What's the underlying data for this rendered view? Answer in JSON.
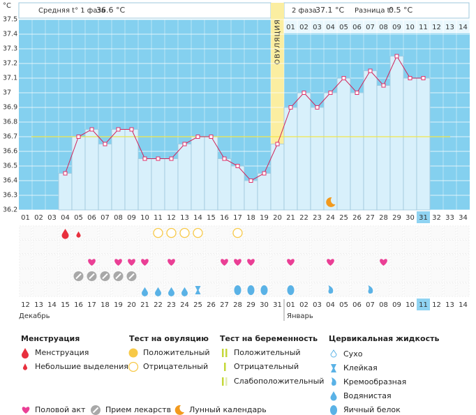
{
  "header": {
    "unit": "°C",
    "phase1_label": "Средняя t° 1 фаза",
    "phase1_value": "36.6 °C",
    "phase2_label": "2 фаза",
    "phase2_value": "37.1 °C",
    "diff_label": "Разница t°",
    "diff_value": "0.5 °C"
  },
  "chart_data": {
    "type": "line",
    "categories": [
      "01",
      "02",
      "03",
      "04",
      "05",
      "06",
      "07",
      "08",
      "09",
      "10",
      "11",
      "12",
      "13",
      "14",
      "15",
      "16",
      "17",
      "18",
      "19",
      "20",
      "21",
      "22",
      "23",
      "24",
      "25",
      "26",
      "27",
      "28",
      "29",
      "30",
      "31",
      "32",
      "33",
      "34"
    ],
    "values": [
      null,
      null,
      null,
      36.45,
      36.7,
      36.75,
      36.65,
      36.75,
      36.75,
      36.55,
      36.55,
      36.55,
      36.65,
      36.7,
      36.7,
      36.55,
      36.5,
      36.4,
      36.45,
      36.65,
      36.9,
      37.0,
      36.9,
      37.0,
      37.1,
      37.0,
      37.15,
      37.05,
      37.25,
      37.1,
      37.1,
      null,
      null,
      null
    ],
    "color": "#d0245a",
    "ylim": [
      36.2,
      37.5
    ],
    "yticks": [
      37.5,
      37.4,
      37.3,
      37.2,
      37.1,
      37,
      36.9,
      36.8,
      36.7,
      36.6,
      36.5,
      36.4,
      36.3,
      36.2
    ],
    "grid": true,
    "coverline": 36.7,
    "ovulation_day": 20,
    "ovulation_label": "ОВУЛЯЦИЯ",
    "dpo_labels": [
      "01",
      "02",
      "03",
      "04",
      "05",
      "06",
      "07",
      "08",
      "09",
      "10",
      "11",
      "12",
      "13",
      "14"
    ],
    "dates": [
      "12",
      "13",
      "14",
      "15",
      "16",
      "17",
      "18",
      "19",
      "20",
      "21",
      "22",
      "23",
      "24",
      "25",
      "26",
      "27",
      "28",
      "29",
      "30",
      "31",
      "01",
      "02",
      "03",
      "04",
      "05",
      "06",
      "07",
      "08",
      "09",
      "10",
      "11",
      "12",
      "13",
      "14"
    ],
    "weekend_days": [
      1,
      2,
      8,
      9,
      15,
      16,
      22,
      23,
      24,
      28,
      29
    ],
    "today": 31,
    "months": [
      "Декабрь",
      "Январь"
    ],
    "moon_days": [
      24
    ]
  },
  "events": {
    "menstruation": [
      4
    ],
    "spotting": [
      5
    ],
    "ovulation_test_negative": [
      11,
      12,
      13,
      14,
      17
    ],
    "intercourse": [
      6,
      8,
      9,
      10,
      12,
      16,
      17,
      18,
      21,
      24,
      28
    ],
    "medication": [
      5,
      6,
      7,
      8,
      9
    ],
    "cf_watery": [
      10,
      11,
      12,
      13
    ],
    "cf_sticky": [
      14
    ],
    "cf_eggwhite": [
      17,
      18,
      19,
      21
    ],
    "cf_creamy": [
      24,
      27
    ]
  },
  "legend": {
    "menstruation": {
      "title": "Менструация",
      "items": [
        "Менструация",
        "Небольшие выделения"
      ]
    },
    "ovulation_test": {
      "title": "Тест на овуляцию",
      "items": [
        "Положительный",
        "Отрицательный"
      ]
    },
    "pregnancy_test": {
      "title": "Тест на беременность",
      "items": [
        "Положительный",
        "Отрицательный",
        "Слабоположительный"
      ]
    },
    "cervical": {
      "title": "Цервикальная жидкость",
      "items": [
        "Сухо",
        "Клейкая",
        "Кремообразная",
        "Водянистая",
        "Яичный белок"
      ]
    },
    "other": [
      "Половой акт",
      "Прием лекарств",
      "Лунный календарь"
    ]
  }
}
